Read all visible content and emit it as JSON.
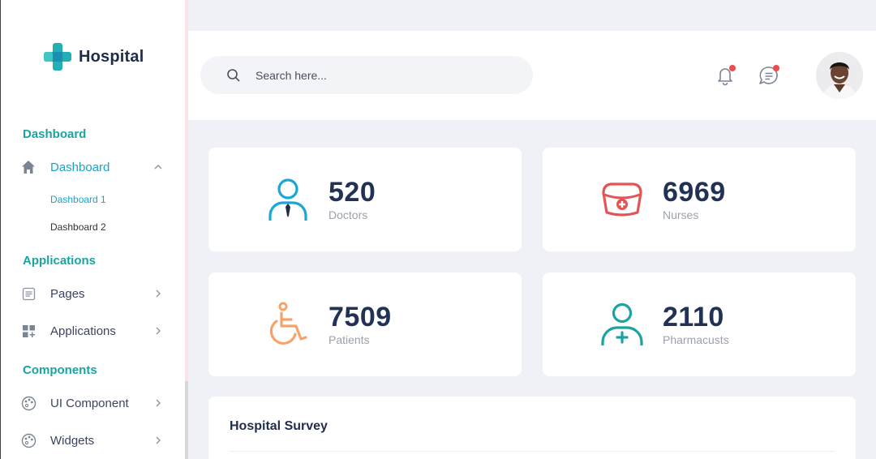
{
  "brand": {
    "name": "Hospital"
  },
  "sidebar": {
    "sections": [
      {
        "title": "Dashboard"
      },
      {
        "title": "Applications"
      },
      {
        "title": "Components"
      }
    ],
    "items": {
      "dashboard": {
        "label": "Dashboard",
        "icon": "home-icon"
      },
      "dashboard_1": {
        "label": "Dashboard 1"
      },
      "dashboard_2": {
        "label": "Dashboard 2"
      },
      "pages": {
        "label": "Pages",
        "icon": "pages-icon"
      },
      "applications": {
        "label": "Applications",
        "icon": "grid-icon"
      },
      "ui_component": {
        "label": "UI Component",
        "icon": "palette-icon"
      },
      "widgets": {
        "label": "Widgets",
        "icon": "palette-icon"
      }
    }
  },
  "header": {
    "search": {
      "placeholder": "Search here..."
    },
    "notifications_icon": "bell-icon",
    "messages_icon": "chat-icon"
  },
  "stats": [
    {
      "value": "520",
      "label": "Doctors",
      "icon": "doctor-icon",
      "color": "#1aa7d8"
    },
    {
      "value": "6969",
      "label": "Nurses",
      "icon": "nurse-cap-icon",
      "color": "#e45454"
    },
    {
      "value": "7509",
      "label": "Patients",
      "icon": "wheelchair-icon",
      "color": "#f5a36b"
    },
    {
      "value": "2110",
      "label": "Pharmacusts",
      "icon": "pharmacist-icon",
      "color": "#1aa3a3"
    }
  ],
  "survey": {
    "title": "Hospital Survey"
  },
  "colors": {
    "accent": "#1aa3a3",
    "active": "#1aa3c8",
    "badge": "#ee4c4c"
  }
}
